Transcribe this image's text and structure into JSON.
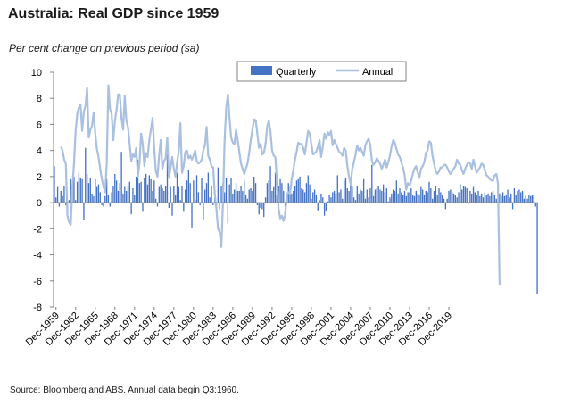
{
  "title": "Australia: Real GDP since 1959",
  "subtitle": "Per cent change on previous period (sa)",
  "source": "Source: Bloomberg and ABS.  Annual data begin Q3:1960.",
  "colors": {
    "quarterly": "#4472c4",
    "annual": "#a9c0e0"
  },
  "chart_data": {
    "type": "bar",
    "ylim": [
      -8,
      10
    ],
    "yticks": [
      -8,
      -6,
      -4,
      -2,
      0,
      2,
      4,
      6,
      8,
      10
    ],
    "xtick_labels": [
      "Dec-1959",
      "Dec-1962",
      "Dec-1965",
      "Dec-1968",
      "Dec-1971",
      "Dec-1974",
      "Dec-1977",
      "Dec-1980",
      "Dec-1983",
      "Dec-1986",
      "Dec-1989",
      "Dec-1992",
      "Dec-1995",
      "Dec-1998",
      "Dec-2001",
      "Dec-2004",
      "Dec-2007",
      "Dec-2010",
      "Dec-2013",
      "Dec-2016",
      "Dec-2019"
    ],
    "legend": {
      "position": "top-center"
    },
    "quarterly_start": "Sep-1959",
    "series": [
      {
        "name": "Quarterly",
        "type": "bar",
        "values": [
          2.8,
          0.4,
          1.2,
          -0.3,
          0.9,
          0.5,
          1.3,
          -0.2,
          -0.6,
          0.2,
          1.8,
          1.5,
          2.0,
          0.2,
          1.6,
          2.3,
          1.9,
          1.8,
          -1.3,
          4.2,
          2.2,
          1.5,
          1.9,
          0.7,
          0.5,
          1.8,
          1.2,
          1.4,
          0.8,
          -0.2,
          -0.3,
          0.5,
          1.8,
          0.6,
          -0.3,
          0.8,
          1.3,
          2.2,
          1.7,
          0.9,
          1.5,
          3.9,
          0.7,
          1.2,
          0.9,
          1.3,
          1.6,
          -0.9,
          1.1,
          0.6,
          2.0,
          3.3,
          1.5,
          1.6,
          -0.7,
          1.9,
          2.2,
          1.4,
          2.1,
          1.8,
          0.9,
          1.7,
          0.3,
          -0.3,
          1.2,
          1.4,
          1.1,
          0.9,
          1.3,
          3.7,
          -0.4,
          1.2,
          -1.0,
          1.3,
          0.6,
          2.3,
          1.2,
          0.2,
          1.3,
          -0.7,
          1.0,
          1.7,
          2.5,
          1.5,
          -1.9,
          1.7,
          0.2,
          2.1,
          0.8,
          -0.2,
          1.9,
          -1.3,
          1.0,
          1.5,
          2.3,
          0.4,
          1.3,
          -0.2,
          0.6,
          -0.4,
          2.7,
          -0.5,
          1.3,
          1.5,
          0.8,
          1.9,
          -1.6,
          1.4,
          1.9,
          0.7,
          1.0,
          1.5,
          0.9,
          0.9,
          1.3,
          0.9,
          1.7,
          0.6,
          0.3,
          1.0,
          1.1,
          0.9,
          2.0,
          1.5,
          -0.2,
          -0.9,
          -0.4,
          -0.5,
          -1.1,
          0.4,
          1.5,
          1.7,
          2.8,
          0.9,
          1.2,
          2.3,
          0.6,
          1.3,
          1.8,
          1.5,
          0.9,
          -0.3,
          0.4,
          1.5,
          1.2,
          0.7,
          0.9,
          1.3,
          1.7,
          1.8,
          2.0,
          1.1,
          1.0,
          0.8,
          1.5,
          2.1,
          1.4,
          0.3,
          0.8,
          1.0,
          0.6,
          -0.6,
          0.2,
          0.7,
          0.4,
          -1.0,
          -0.6,
          0.1,
          0.6,
          0.4,
          0.8,
          0.9,
          0.7,
          2.1,
          0.8,
          1.0,
          0.3,
          1.7,
          1.9,
          1.1,
          0.9,
          1.4,
          1.2,
          0.4,
          0.2,
          1.3,
          0.7,
          1.0,
          0.9,
          1.8,
          0.3,
          1.0,
          0.4,
          1.1,
          2.9,
          0.5,
          1.0,
          1.1,
          1.3,
          1.0,
          0.9,
          1.4,
          0.8,
          1.1,
          0.1,
          0.4,
          0.7,
          1.0,
          0.9,
          1.7,
          0.7,
          1.1,
          0.8,
          0.6,
          0.9,
          0.5,
          0.8,
          0.8,
          1.1,
          0.6,
          0.5,
          0.9,
          0.7,
          0.6,
          1.2,
          1.0,
          0.6,
          0.9,
          0.8,
          1.6,
          1.1,
          0.3,
          0.9,
          1.3,
          0.6,
          1.1,
          0.8,
          0.6,
          0.3,
          -0.5,
          0.3,
          0.9,
          1.0,
          0.8,
          0.7,
          0.6,
          0.4,
          0.8,
          1.4,
          1.0,
          1.3,
          1.2,
          1.1,
          -0.1,
          0.9,
          0.7,
          1.2,
          0.8,
          0.6,
          0.9,
          0.5,
          0.7,
          0.4,
          0.8,
          0.6,
          0.7,
          0.5,
          0.8,
          0.9,
          0.6,
          0.3,
          0.9,
          0.7,
          0.5,
          0.8,
          0.5,
          0.6,
          1.0,
          0.4,
          0.7,
          -0.5,
          1.1,
          0.6,
          0.9,
          1.0,
          0.8,
          0.9,
          0.3,
          0.6,
          0.3,
          0.6,
          0.5,
          0.6,
          0.5,
          -0.3,
          -7.0
        ]
      },
      {
        "name": "Annual",
        "type": "line",
        "values": [
          4.3,
          4.0,
          3.3,
          3.0,
          -1.0,
          -1.5,
          -1.7,
          1.2,
          3.0,
          5.5,
          6.8,
          7.3,
          7.5,
          5.5,
          7.0,
          7.4,
          8.8,
          5.0,
          5.6,
          5.9,
          6.9,
          5.3,
          4.1,
          3.5,
          2.6,
          1.8,
          1.2,
          0.8,
          3.0,
          9.0,
          7.2,
          6.8,
          4.8,
          6.3,
          7.1,
          8.3,
          8.3,
          6.5,
          5.6,
          8.2,
          6.3,
          5.8,
          4.5,
          3.2,
          3.7,
          3.5,
          4.2,
          2.0,
          3.0,
          5.3,
          4.5,
          2.8,
          3.8,
          3.5,
          4.8,
          5.6,
          6.5,
          4.2,
          2.4,
          2.0,
          3.6,
          4.8,
          2.6,
          3.2,
          3.4,
          5.0,
          1.9,
          2.7,
          3.5,
          2.6,
          2.0,
          3.1,
          3.9,
          6.1,
          2.3,
          2.8,
          3.9,
          4.0,
          3.4,
          3.6,
          3.3,
          3.6,
          4.0,
          3.2,
          3.0,
          3.1,
          3.3,
          4.0,
          4.4,
          5.8,
          3.6,
          3.3,
          2.8,
          2.7,
          0.7,
          -0.5,
          -2.0,
          -2.3,
          -3.4,
          0.0,
          4.8,
          7.3,
          8.3,
          6.5,
          5.0,
          4.6,
          4.5,
          5.6,
          4.8,
          3.9,
          3.0,
          2.6,
          2.2,
          2.6,
          3.0,
          3.8,
          4.8,
          5.6,
          6.4,
          6.3,
          5.3,
          4.2,
          4.5,
          3.7,
          3.8,
          4.5,
          5.8,
          6.3,
          5.5,
          4.0,
          3.6,
          3.5,
          1.6,
          -0.5,
          -1.2,
          -1.0,
          -1.4,
          -0.9,
          0.6,
          0.8,
          0.7,
          1.8,
          2.5,
          3.3,
          3.9,
          4.6,
          4.5,
          4.5,
          4.2,
          3.7,
          4.6,
          5.5,
          5.3,
          4.5,
          3.7,
          3.8,
          3.9,
          4.3,
          4.8,
          3.5,
          4.3,
          5.3,
          4.9,
          5.4,
          5.2,
          5.5,
          4.4,
          4.8,
          4.5,
          4.2,
          3.9,
          3.8,
          3.6,
          4.2,
          4.0,
          2.8,
          2.0,
          1.4,
          2.6,
          3.1,
          3.7,
          4.4,
          4.0,
          4.2,
          3.9,
          3.6,
          4.4,
          4.7,
          4.9,
          4.4,
          3.2,
          2.9,
          3.1,
          3.4,
          3.2,
          3.0,
          2.6,
          2.9,
          3.3,
          2.7,
          3.1,
          3.6,
          4.3,
          4.8,
          4.6,
          4.1,
          3.7,
          3.5,
          3.1,
          2.7,
          2.1,
          1.0,
          1.5,
          1.3,
          1.7,
          2.2,
          2.6,
          2.8,
          2.3,
          1.9,
          2.6,
          2.8,
          3.1,
          3.8,
          4.0,
          4.7,
          4.6,
          3.6,
          3.0,
          2.4,
          2.2,
          2.4,
          2.7,
          2.7,
          2.9,
          2.9,
          2.7,
          2.4,
          2.2,
          2.4,
          2.6,
          2.8,
          3.3,
          3.0,
          2.9,
          2.5,
          2.2,
          2.6,
          2.9,
          3.1,
          3.0,
          2.6,
          3.3,
          2.8,
          2.3,
          2.5,
          2.7,
          3.0,
          2.9,
          2.5,
          2.1,
          2.0,
          1.8,
          1.7,
          1.7,
          2.1,
          2.2,
          1.5,
          -6.3
        ]
      }
    ]
  }
}
